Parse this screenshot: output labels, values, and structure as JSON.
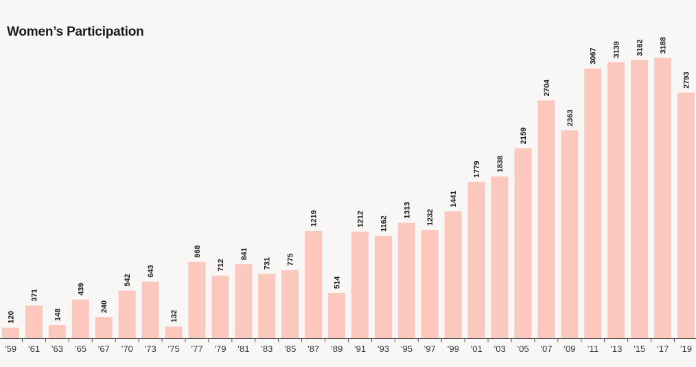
{
  "chart_data": {
    "type": "bar",
    "title": "Women’s Participation",
    "xlabel": "",
    "ylabel": "",
    "ylim": [
      0,
      3300
    ],
    "grid": false,
    "categories": [
      "’59",
      "’61",
      "’63",
      "’65",
      "’67",
      "’70",
      "’73",
      "’75",
      "’77",
      "’79",
      "’81",
      "’83",
      "’85",
      "’87",
      "’89",
      "’91",
      "’93",
      "’95",
      "’97",
      "’99",
      "’01",
      "’03",
      "’05",
      "’07",
      "’09",
      "’11",
      "’13",
      "’15",
      "’17",
      "’19"
    ],
    "values": [
      120,
      371,
      148,
      439,
      240,
      542,
      643,
      132,
      868,
      712,
      841,
      731,
      775,
      1219,
      514,
      1212,
      1162,
      1313,
      1232,
      1441,
      1779,
      1838,
      2159,
      2704,
      2363,
      3067,
      3139,
      3162,
      3188,
      2793
    ],
    "colors": {
      "bar": "#fcc7bd",
      "axis": "#555555",
      "text": "#1a1a1a",
      "background": "#f8f7f5"
    }
  }
}
